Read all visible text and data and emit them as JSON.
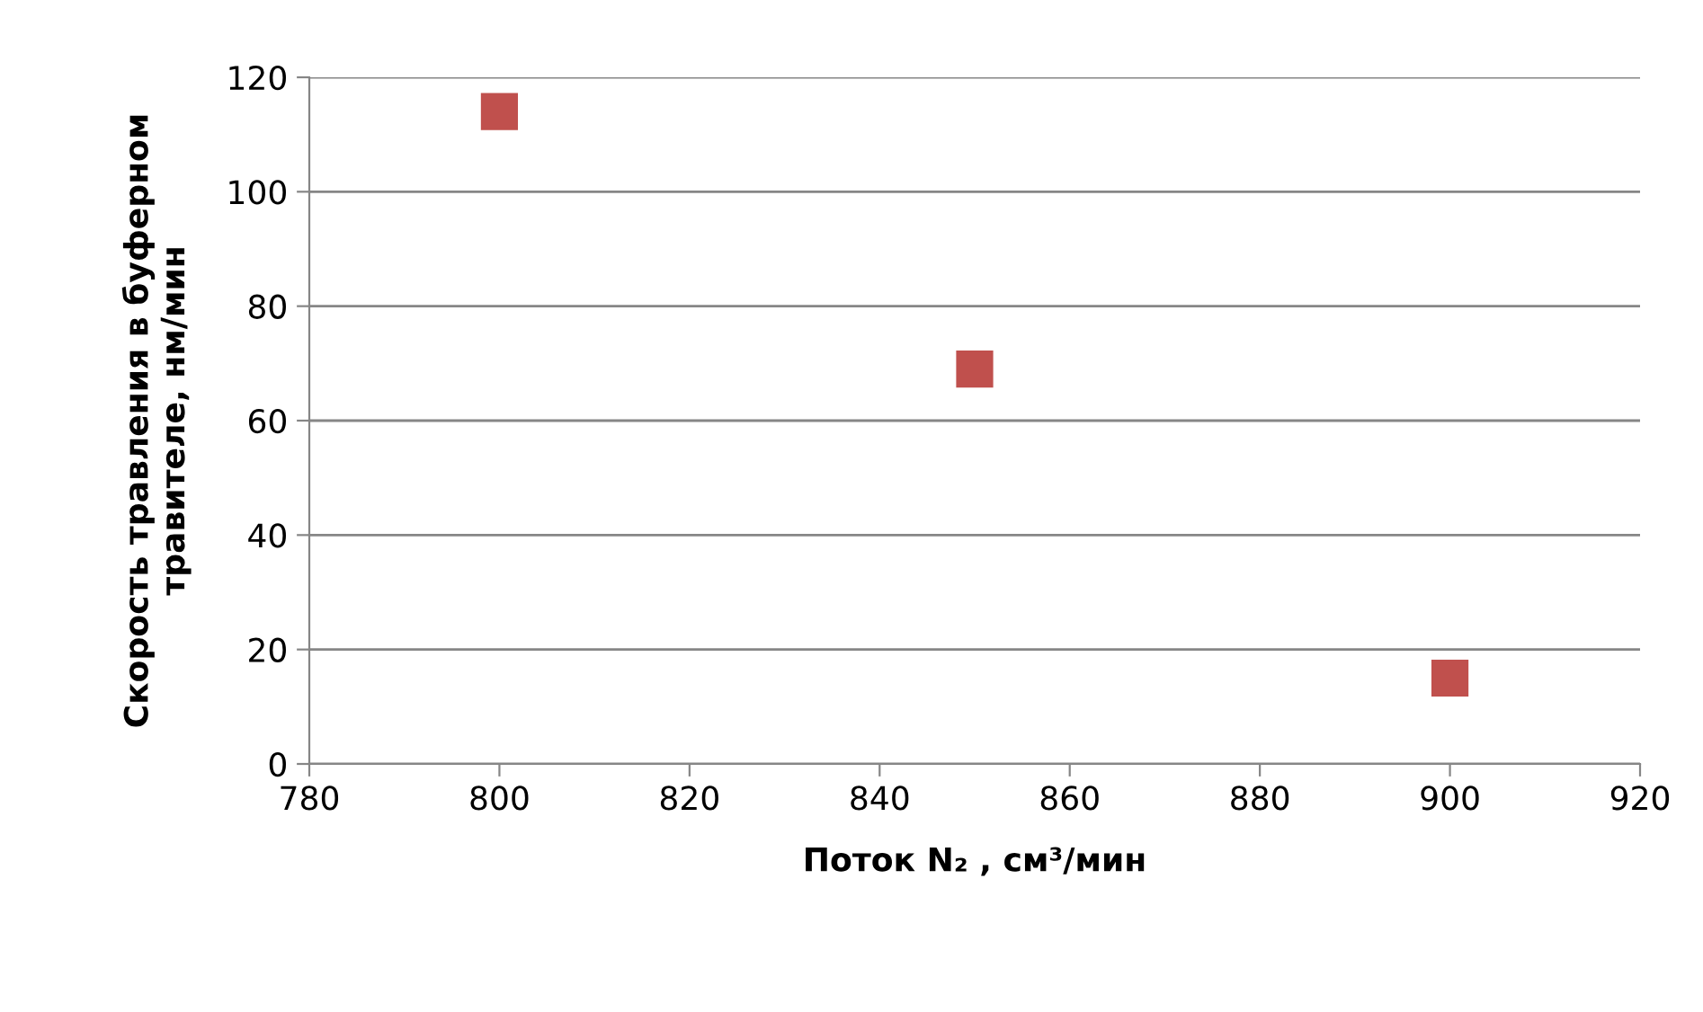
{
  "chart_data": {
    "type": "scatter",
    "xlabel": "Поток N₂ , см³/мин",
    "ylabel": "Скорость травления в буферном\nтравителе, нм/мин",
    "series": [
      {
        "x": [
          800,
          850,
          900
        ],
        "values": [
          114,
          69,
          15
        ],
        "color": "#c0504d"
      }
    ],
    "xlim": [
      780,
      920
    ],
    "xticks": [
      780,
      800,
      820,
      840,
      860,
      880,
      900,
      920
    ],
    "ylim": [
      0,
      120
    ],
    "yticks": [
      0,
      20,
      40,
      60,
      80,
      100,
      120
    ],
    "grid": "y",
    "marker": "square",
    "legend": false
  }
}
